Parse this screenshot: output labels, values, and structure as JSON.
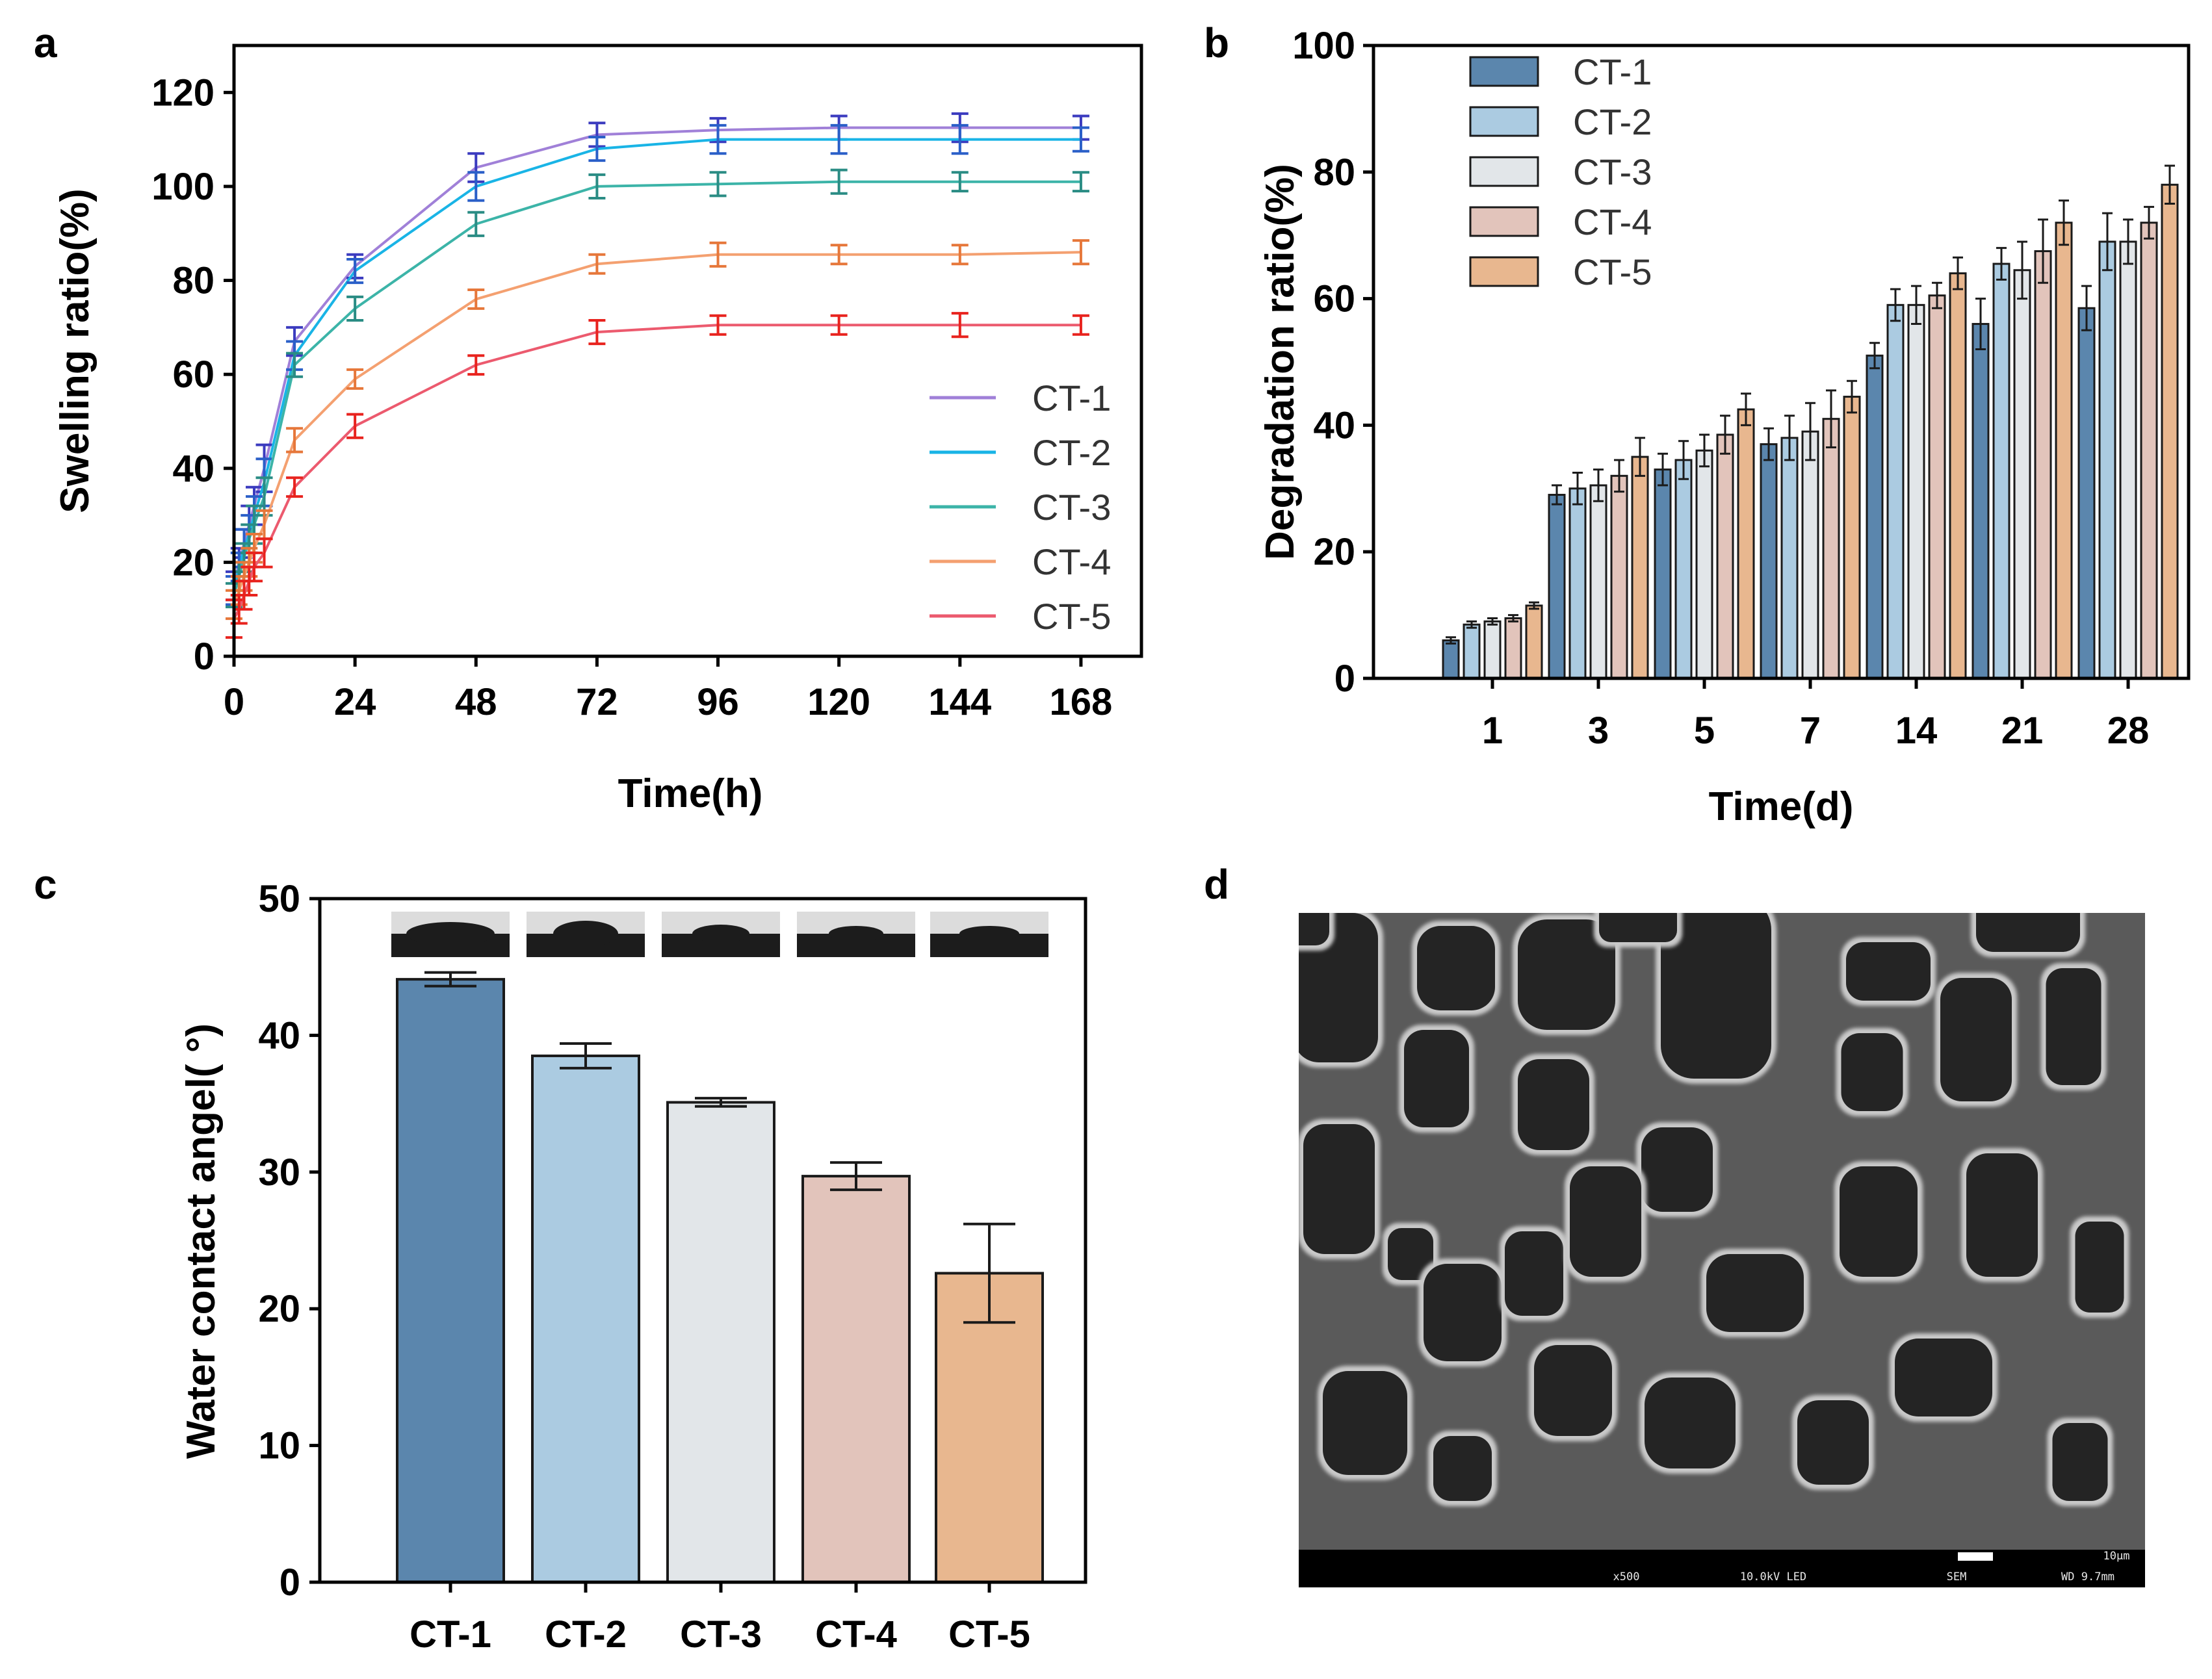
{
  "panels": {
    "a": "a",
    "b": "b",
    "c": "c",
    "d": "d"
  },
  "colors": {
    "line": [
      "#a080d8",
      "#19b4e6",
      "#3cb4a8",
      "#f4a070",
      "#ec5a6e"
    ],
    "line_marker": [
      "#3b3bbf",
      "#2a5fc8",
      "#2a8c84",
      "#e6773a",
      "#e8231e"
    ],
    "bar": [
      "#5b86ad",
      "#abcbe1",
      "#e2e6e9",
      "#e2c4bb",
      "#e8b78f"
    ]
  },
  "chart_data": [
    {
      "id": "a",
      "type": "line",
      "title": "",
      "xlabel": "Time(h)",
      "ylabel": "Swelling ratio(%)",
      "xlim": [
        0,
        180
      ],
      "ylim": [
        0,
        130
      ],
      "xticks": [
        0,
        24,
        48,
        72,
        96,
        120,
        144,
        168
      ],
      "yticks": [
        0,
        20,
        40,
        60,
        80,
        100,
        120
      ],
      "x": [
        0,
        1,
        2,
        3,
        4,
        6,
        12,
        24,
        48,
        72,
        96,
        120,
        144,
        168
      ],
      "series": [
        {
          "name": "CT-1",
          "values": [
            15,
            20,
            24,
            28,
            32,
            40,
            67,
            83,
            104,
            111,
            112,
            112.5,
            112.5,
            112.5
          ],
          "errors": [
            3,
            3,
            3,
            4,
            4,
            5,
            3,
            2.5,
            3,
            2.5,
            2.5,
            2.5,
            3,
            2.5
          ]
        },
        {
          "name": "CT-2",
          "values": [
            14,
            19,
            23,
            26,
            30,
            37,
            64,
            82,
            100,
            108,
            110,
            110,
            110,
            110
          ],
          "errors": [
            3,
            3,
            4,
            4,
            4,
            5,
            3,
            2.5,
            3,
            2.5,
            3,
            3,
            3,
            2.5
          ]
        },
        {
          "name": "CT-3",
          "values": [
            13,
            17,
            21,
            25,
            28,
            34,
            62,
            74,
            92,
            100,
            100.5,
            101,
            101,
            101
          ],
          "errors": [
            2.5,
            3,
            3,
            3,
            4,
            4,
            2.5,
            2.5,
            2.5,
            2.5,
            2.5,
            2.5,
            2,
            2
          ]
        },
        {
          "name": "CT-4",
          "values": [
            11,
            14,
            17,
            20,
            23,
            28,
            46,
            59,
            76,
            83.5,
            85.5,
            85.5,
            85.5,
            86
          ],
          "errors": [
            3,
            3,
            3,
            3,
            3,
            3,
            2.5,
            2,
            2,
            2,
            2.5,
            2,
            2,
            2.5
          ]
        },
        {
          "name": "CT-5",
          "values": [
            8,
            10,
            13,
            16,
            19,
            22,
            36,
            49,
            62,
            69,
            70.5,
            70.5,
            70.5,
            70.5
          ],
          "errors": [
            4,
            3,
            3,
            3,
            3,
            3,
            2,
            2.5,
            2,
            2.5,
            2,
            2,
            2.5,
            2
          ]
        }
      ],
      "legend": "bottom-right"
    },
    {
      "id": "b",
      "type": "bar",
      "title": "",
      "xlabel": "Time(d)",
      "ylabel": "Degradation ratio(%)",
      "ylim": [
        0,
        100
      ],
      "yticks": [
        0,
        20,
        40,
        60,
        80,
        100
      ],
      "categories": [
        "1",
        "3",
        "5",
        "7",
        "14",
        "21",
        "28"
      ],
      "series": [
        {
          "name": "CT-1",
          "values": [
            6,
            29,
            33,
            37,
            51,
            56,
            58.5
          ],
          "errors": [
            0.5,
            1.5,
            2.5,
            2.5,
            2,
            4,
            3.5
          ]
        },
        {
          "name": "CT-2",
          "values": [
            8.5,
            30,
            34.5,
            38,
            59,
            65.5,
            69
          ],
          "errors": [
            0.5,
            2.5,
            3,
            3.5,
            2.5,
            2.5,
            4.5
          ]
        },
        {
          "name": "CT-3",
          "values": [
            9,
            30.5,
            36,
            39,
            59,
            64.5,
            69
          ],
          "errors": [
            0.5,
            2.5,
            2.5,
            4.5,
            3,
            4.5,
            3.5
          ]
        },
        {
          "name": "CT-4",
          "values": [
            9.5,
            32,
            38.5,
            41,
            60.5,
            67.5,
            72
          ],
          "errors": [
            0.5,
            2.5,
            3,
            4.5,
            2,
            5,
            2.5
          ]
        },
        {
          "name": "CT-5",
          "values": [
            11.5,
            35,
            42.5,
            44.5,
            64,
            72,
            78
          ],
          "errors": [
            0.5,
            3,
            2.5,
            2.5,
            2.5,
            3.5,
            3
          ]
        }
      ],
      "legend": "top-left"
    },
    {
      "id": "c",
      "type": "bar",
      "title": "",
      "xlabel": "",
      "ylabel": "Water contact angel( °)",
      "ylim": [
        0,
        50
      ],
      "yticks": [
        0,
        10,
        20,
        30,
        40,
        50
      ],
      "categories": [
        "CT-1",
        "CT-2",
        "CT-3",
        "CT-4",
        "CT-5"
      ],
      "values": [
        44.1,
        38.5,
        35.1,
        29.7,
        22.6
      ],
      "errors": [
        0.5,
        0.9,
        0.3,
        1.0,
        3.6
      ]
    }
  ],
  "sem": {
    "scale_label": "10µm",
    "magnification": "x500",
    "voltage": "10.0kV LED",
    "mode": "SEM",
    "wd": "WD 9.7mm"
  }
}
